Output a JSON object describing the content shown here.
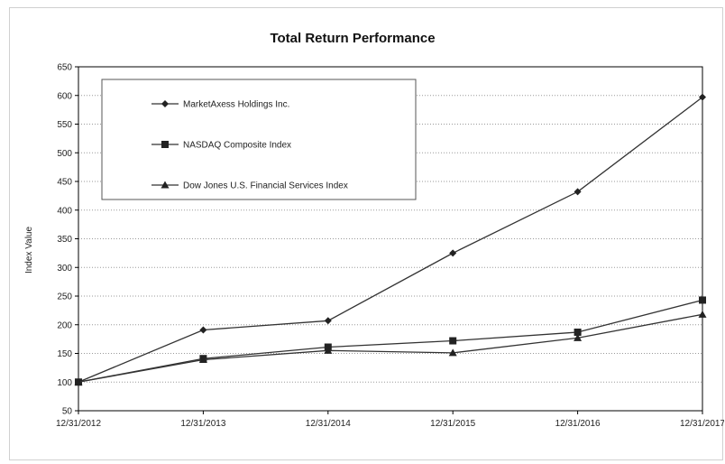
{
  "chart_data": {
    "type": "line",
    "title": "Total Return Performance",
    "xlabel": "",
    "ylabel": "Index Value",
    "categories": [
      "12/31/2012",
      "12/31/2013",
      "12/31/2014",
      "12/31/2015",
      "12/31/2016",
      "12/31/2017"
    ],
    "ylim": [
      50,
      650
    ],
    "yticks": [
      50,
      100,
      150,
      200,
      250,
      300,
      350,
      400,
      450,
      500,
      550,
      600,
      650
    ],
    "grid": true,
    "legend_position": "top-left",
    "series": [
      {
        "name": "MarketAxess Holdings Inc.",
        "marker": "diamond",
        "color": "#333333",
        "values": [
          100,
          191,
          207,
          325,
          432,
          597
        ]
      },
      {
        "name": "NASDAQ Composite Index",
        "marker": "square",
        "color": "#333333",
        "values": [
          100,
          141,
          161,
          172,
          187,
          243
        ]
      },
      {
        "name": "Dow Jones U.S. Financial Services Index",
        "marker": "triangle",
        "color": "#333333",
        "values": [
          100,
          139,
          155,
          151,
          177,
          218
        ]
      }
    ]
  }
}
